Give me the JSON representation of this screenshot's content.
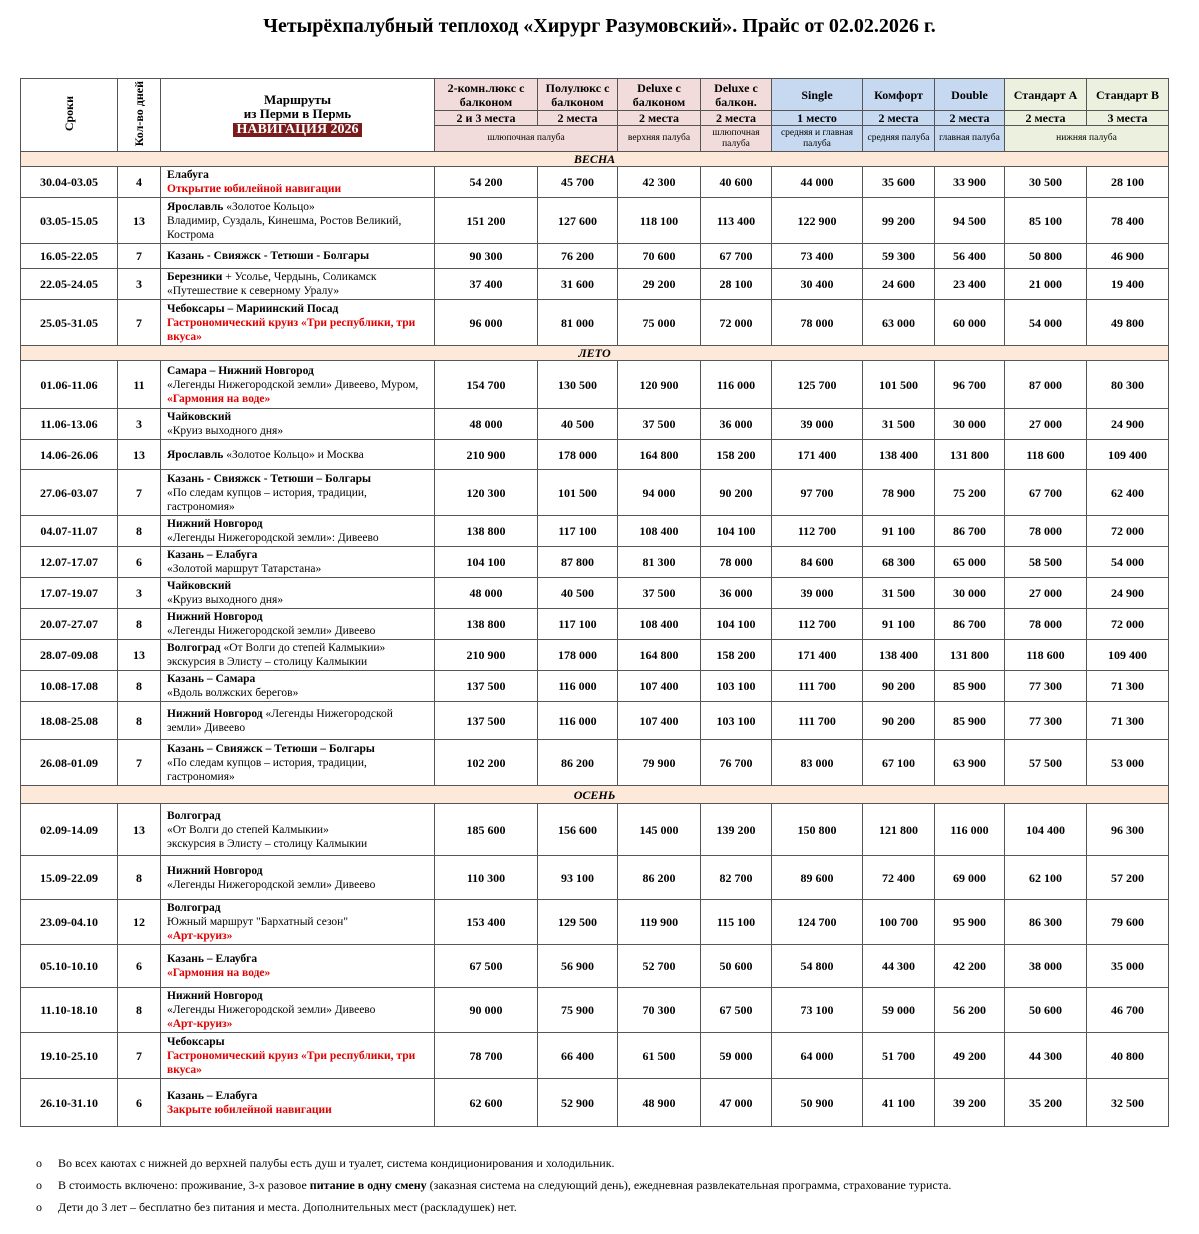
{
  "title": "Четырёхпалубный теплоход «Хирург Разумовский». Прайс от 02.02.2026 г.",
  "header": {
    "dates": "Сроки",
    "days": "Кол-во дней",
    "route": [
      "Маршруты",
      "из Перми в Пермь"
    ],
    "navigation": "НАВИГАЦИЯ 2026",
    "cabins": [
      {
        "name": "2-комн.люкс с балконом",
        "places": "2 и 3 места"
      },
      {
        "name": "Полулюкс с балконом",
        "places": "2 места"
      },
      {
        "name": "Deluxe с балконом",
        "places": "2 места"
      },
      {
        "name": "Deluxe с балкон.",
        "places": "2 места"
      },
      {
        "name": "Single",
        "places": "1 место"
      },
      {
        "name": "Комфорт",
        "places": "2 места"
      },
      {
        "name": "Double",
        "places": "2 места"
      },
      {
        "name": "Стандарт A",
        "places": "2 места"
      },
      {
        "name": "Стандарт B",
        "places": "3 места"
      }
    ],
    "decks": [
      "шлюпочная палуба",
      "верхняя палуба",
      "шлюпочная палуба",
      "средняя и главная палуба",
      "средняя палуба",
      "главная палуба",
      "нижняя палуба"
    ]
  },
  "sections": [
    {
      "name": "ВЕСНА",
      "rows": [
        {
          "dates": "30.04-03.05",
          "days": "4",
          "route": [
            [
              {
                "text": "Елабуга",
                "style": "bold"
              }
            ],
            [
              {
                "text": "Открытие юбилейной навигации",
                "style": "red"
              }
            ]
          ],
          "prices": [
            "54 200",
            "45 700",
            "42 300",
            "40 600",
            "44 000",
            "35 600",
            "33 900",
            "30 500",
            "28 100"
          ]
        },
        {
          "dates": "03.05-15.05",
          "days": "13",
          "route": [
            [
              {
                "text": "Ярославль",
                "style": "bold"
              },
              {
                "text": " «Золотое Кольцо»",
                "style": "plain"
              }
            ],
            [
              {
                "text": "Владимир, Суздаль, Кинешма,  Ростов Великий, Кострома",
                "style": "plain"
              }
            ]
          ],
          "prices": [
            "151 200",
            "127 600",
            "118 100",
            "113 400",
            "122 900",
            "99 200",
            "94 500",
            "85 100",
            "78 400"
          ]
        },
        {
          "dates": "16.05-22.05",
          "days": "7",
          "route": [
            [
              {
                "text": "Казань - Свияжск - Тетюши - Болгары",
                "style": "bold"
              }
            ]
          ],
          "prices": [
            "90 300",
            "76 200",
            "70 600",
            "67 700",
            "73 400",
            "59 300",
            "56 400",
            "50 800",
            "46 900"
          ]
        },
        {
          "dates": "22.05-24.05",
          "days": "3",
          "route": [
            [
              {
                "text": "Березники",
                "style": "bold"
              },
              {
                "text": " + Усолье, Чердынь, Соликамск",
                "style": "plain"
              }
            ],
            [
              {
                "text": "«Путешествие к северному Уралу»",
                "style": "plain"
              }
            ]
          ],
          "prices": [
            "37 400",
            "31 600",
            "29 200",
            "28 100",
            "30 400",
            "24 600",
            "23 400",
            "21 000",
            "19 400"
          ]
        },
        {
          "dates": "25.05-31.05",
          "days": "7",
          "route": [
            [
              {
                "text": "Чебоксары – Мариинский Посад",
                "style": "bold"
              }
            ],
            [
              {
                "text": "Гастрономический круиз  «Три республики, три вкуса»",
                "style": "red"
              }
            ]
          ],
          "prices": [
            "96 000",
            "81 000",
            "75 000",
            "72 000",
            "78 000",
            "63 000",
            "60 000",
            "54 000",
            "49 800"
          ]
        }
      ]
    },
    {
      "name": "ЛЕТО",
      "rows": [
        {
          "dates": "01.06-11.06",
          "days": "11",
          "route": [
            [
              {
                "text": "Самара – Нижний Новгород",
                "style": "bold"
              }
            ],
            [
              {
                "text": "«Легенды Нижегородской земли» Дивеево, Муром, ",
                "style": "plain"
              },
              {
                "text": "«Гармония на воде»",
                "style": "red"
              }
            ]
          ],
          "prices": [
            "154 700",
            "130 500",
            "120 900",
            "116 000",
            "125 700",
            "101 500",
            "96 700",
            "87 000",
            "80 300"
          ]
        },
        {
          "dates": "11.06-13.06",
          "days": "3",
          "route": [
            [
              {
                "text": "Чайковский",
                "style": "bold"
              }
            ],
            [
              {
                "text": "«Круиз выходного дня»",
                "style": "plain"
              }
            ]
          ],
          "prices": [
            "48 000",
            "40 500",
            "37 500",
            "36 000",
            "39 000",
            "31 500",
            "30 000",
            "27 000",
            "24 900"
          ]
        },
        {
          "dates": "14.06-26.06",
          "days": "13",
          "route": [
            [
              {
                "text": "Ярославль",
                "style": "bold"
              },
              {
                "text": " «Золотое Кольцо» и Москва",
                "style": "plain"
              }
            ]
          ],
          "prices": [
            "210 900",
            "178 000",
            "164 800",
            "158 200",
            "171 400",
            "138 400",
            "131 800",
            "118 600",
            "109 400"
          ]
        },
        {
          "dates": "27.06-03.07",
          "days": "7",
          "route": [
            [
              {
                "text": "Казань - Свияжск - Тетюши – Болгары",
                "style": "bold"
              }
            ],
            [
              {
                "text": "«По следам купцов – история, традиции, гастрономия»",
                "style": "plain"
              }
            ]
          ],
          "prices": [
            "120 300",
            "101 500",
            "94 000",
            "90 200",
            "97 700",
            "78 900",
            "75 200",
            "67 700",
            "62 400"
          ]
        },
        {
          "dates": "04.07-11.07",
          "days": "8",
          "route": [
            [
              {
                "text": "Нижний Новгород",
                "style": "bold"
              }
            ],
            [
              {
                "text": "«Легенды Нижегородской земли»: Дивеево",
                "style": "plain"
              }
            ]
          ],
          "prices": [
            "138 800",
            "117 100",
            "108 400",
            "104 100",
            "112 700",
            "91 100",
            "86 700",
            "78 000",
            "72 000"
          ]
        },
        {
          "dates": "12.07-17.07",
          "days": "6",
          "route": [
            [
              {
                "text": "Казань – Елабуга",
                "style": "bold"
              }
            ],
            [
              {
                "text": "«Золотой маршрут Татарстана»",
                "style": "plain"
              }
            ]
          ],
          "prices": [
            "104 100",
            "87 800",
            "81 300",
            "78 000",
            "84 600",
            "68 300",
            "65 000",
            "58 500",
            "54 000"
          ]
        },
        {
          "dates": "17.07-19.07",
          "days": "3",
          "route": [
            [
              {
                "text": "Чайковский",
                "style": "bold"
              }
            ],
            [
              {
                "text": "«Круиз выходного дня»",
                "style": "plain"
              }
            ]
          ],
          "prices": [
            "48 000",
            "40 500",
            "37 500",
            "36 000",
            "39 000",
            "31 500",
            "30 000",
            "27 000",
            "24 900"
          ]
        },
        {
          "dates": "20.07-27.07",
          "days": "8",
          "route": [
            [
              {
                "text": "Нижний Новгород",
                "style": "bold"
              }
            ],
            [
              {
                "text": "«Легенды Нижегородской земли» Дивеево",
                "style": "plain"
              }
            ]
          ],
          "prices": [
            "138 800",
            "117 100",
            "108 400",
            "104 100",
            "112 700",
            "91 100",
            "86 700",
            "78 000",
            "72 000"
          ]
        },
        {
          "dates": "28.07-09.08",
          "days": "13",
          "route": [
            [
              {
                "text": "Волгоград",
                "style": "bold"
              },
              {
                "text": " «От Волги до степей Калмыкии»",
                "style": "plain"
              }
            ],
            [
              {
                "text": "экскурсия в Элисту – столицу Калмыкии",
                "style": "plain"
              }
            ]
          ],
          "prices": [
            "210 900",
            "178 000",
            "164 800",
            "158 200",
            "171 400",
            "138 400",
            "131 800",
            "118 600",
            "109 400"
          ]
        },
        {
          "dates": "10.08-17.08",
          "days": "8",
          "route": [
            [
              {
                "text": "Казань – Самара",
                "style": "bold"
              }
            ],
            [
              {
                "text": "«Вдоль волжских берегов»",
                "style": "plain"
              }
            ]
          ],
          "prices": [
            "137 500",
            "116 000",
            "107 400",
            "103 100",
            "111 700",
            "90 200",
            "85 900",
            "77 300",
            "71 300"
          ]
        },
        {
          "dates": "18.08-25.08",
          "days": "8",
          "route": [
            [
              {
                "text": "Нижний Новгород",
                "style": "bold"
              },
              {
                "text": " «Легенды Нижегородской земли» Дивеево",
                "style": "plain"
              }
            ]
          ],
          "prices": [
            "137 500",
            "116 000",
            "107 400",
            "103 100",
            "111 700",
            "90 200",
            "85 900",
            "77 300",
            "71 300"
          ]
        },
        {
          "dates": "26.08-01.09",
          "days": "7",
          "route": [
            [
              {
                "text": "Казань – Свияжск – Тетюши – Болгары",
                "style": "bold"
              }
            ],
            [
              {
                "text": "«По следам купцов – история, традиции, гастрономия»",
                "style": "plain"
              }
            ]
          ],
          "prices": [
            "102 200",
            "86 200",
            "79 900",
            "76 700",
            "83 000",
            "67 100",
            "63 900",
            "57 500",
            "53 000"
          ]
        }
      ]
    },
    {
      "name": "ОСЕНЬ",
      "rows": [
        {
          "dates": "02.09-14.09",
          "days": "13",
          "route": [
            [
              {
                "text": "Волгоград",
                "style": "bold"
              }
            ],
            [
              {
                "text": "«От Волги до степей Калмыкии»",
                "style": "plain"
              }
            ],
            [
              {
                "text": "экскурсия в Элисту – столицу Калмыкии",
                "style": "plain"
              }
            ]
          ],
          "prices": [
            "185 600",
            "156 600",
            "145 000",
            "139 200",
            "150 800",
            "121 800",
            "116 000",
            "104 400",
            "96 300"
          ]
        },
        {
          "dates": "15.09-22.09",
          "days": "8",
          "route": [
            [
              {
                "text": "Нижний Новгород",
                "style": "bold"
              }
            ],
            [
              {
                "text": "«Легенды Нижегородской земли» Дивеево",
                "style": "plain"
              }
            ]
          ],
          "prices": [
            "110 300",
            "93 100",
            "86 200",
            "82 700",
            "89 600",
            "72 400",
            "69 000",
            "62 100",
            "57 200"
          ]
        },
        {
          "dates": "23.09-04.10",
          "days": "12",
          "route": [
            [
              {
                "text": "Волгоград",
                "style": "bold"
              }
            ],
            [
              {
                "text": " Южный маршрут \"Бархатный сезон\"",
                "style": "plain"
              }
            ],
            [
              {
                "text": "«Арт-круиз»",
                "style": "red"
              }
            ]
          ],
          "prices": [
            "153 400",
            "129 500",
            "119 900",
            "115 100",
            "124 700",
            "100 700",
            "95 900",
            "86 300",
            "79 600"
          ]
        },
        {
          "dates": "05.10-10.10",
          "days": "6",
          "route": [
            [
              {
                "text": "Казань – Елаубга",
                "style": "bold"
              }
            ],
            [
              {
                "text": "«Гармония на воде»",
                "style": "red"
              }
            ]
          ],
          "prices": [
            "67 500",
            "56 900",
            "52 700",
            "50 600",
            "54 800",
            "44 300",
            "42 200",
            "38 000",
            "35 000"
          ]
        },
        {
          "dates": "11.10-18.10",
          "days": "8",
          "route": [
            [
              {
                "text": "Нижний Новгород",
                "style": "bold"
              }
            ],
            [
              {
                "text": "«Легенды Нижегородской земли» Дивеево",
                "style": "plain"
              }
            ],
            [
              {
                "text": "«Арт-круиз»",
                "style": "red"
              }
            ]
          ],
          "prices": [
            "90 000",
            "75 900",
            "70 300",
            "67 500",
            "73 100",
            "59 000",
            "56 200",
            "50 600",
            "46 700"
          ]
        },
        {
          "dates": "19.10-25.10",
          "days": "7",
          "route": [
            [
              {
                "text": "Чебоксары",
                "style": "bold"
              }
            ],
            [
              {
                "text": "Гастрономический круиз  «Три республики, три вкуса»",
                "style": "red"
              }
            ]
          ],
          "prices": [
            "78 700",
            "66 400",
            "61 500",
            "59 000",
            "64 000",
            "51 700",
            "49 200",
            "44 300",
            "40 800"
          ]
        },
        {
          "dates": "26.10-31.10",
          "days": "6",
          "route": [
            [
              {
                "text": "Казань – Елабуга",
                "style": "bold"
              }
            ],
            [
              {
                "text": "Закрыте юбилейной навигации",
                "style": "red"
              }
            ]
          ],
          "prices": [
            "62 600",
            "52 900",
            "48 900",
            "47 000",
            "50 900",
            "41 100",
            "39 200",
            "35 200",
            "32 500"
          ]
        }
      ]
    }
  ],
  "notes": [
    [
      {
        "text": "Во всех каютах с нижней до верхней палубы есть душ и туалет, система кондиционирования и холодильник.",
        "style": "plain"
      }
    ],
    [
      {
        "text": "В стоимость включено: проживание, 3-х разовое ",
        "style": "plain"
      },
      {
        "text": "питание в одну смену",
        "style": "bold"
      },
      {
        "text": " (заказная система на следующий день), ежедневная развлекательная программа, страхование туриста.",
        "style": "plain"
      }
    ],
    [
      {
        "text": "Дети до 3 лет – бесплатно без питания и места. Дополнительных мест (раскладушек) нет.",
        "style": "plain"
      }
    ]
  ]
}
